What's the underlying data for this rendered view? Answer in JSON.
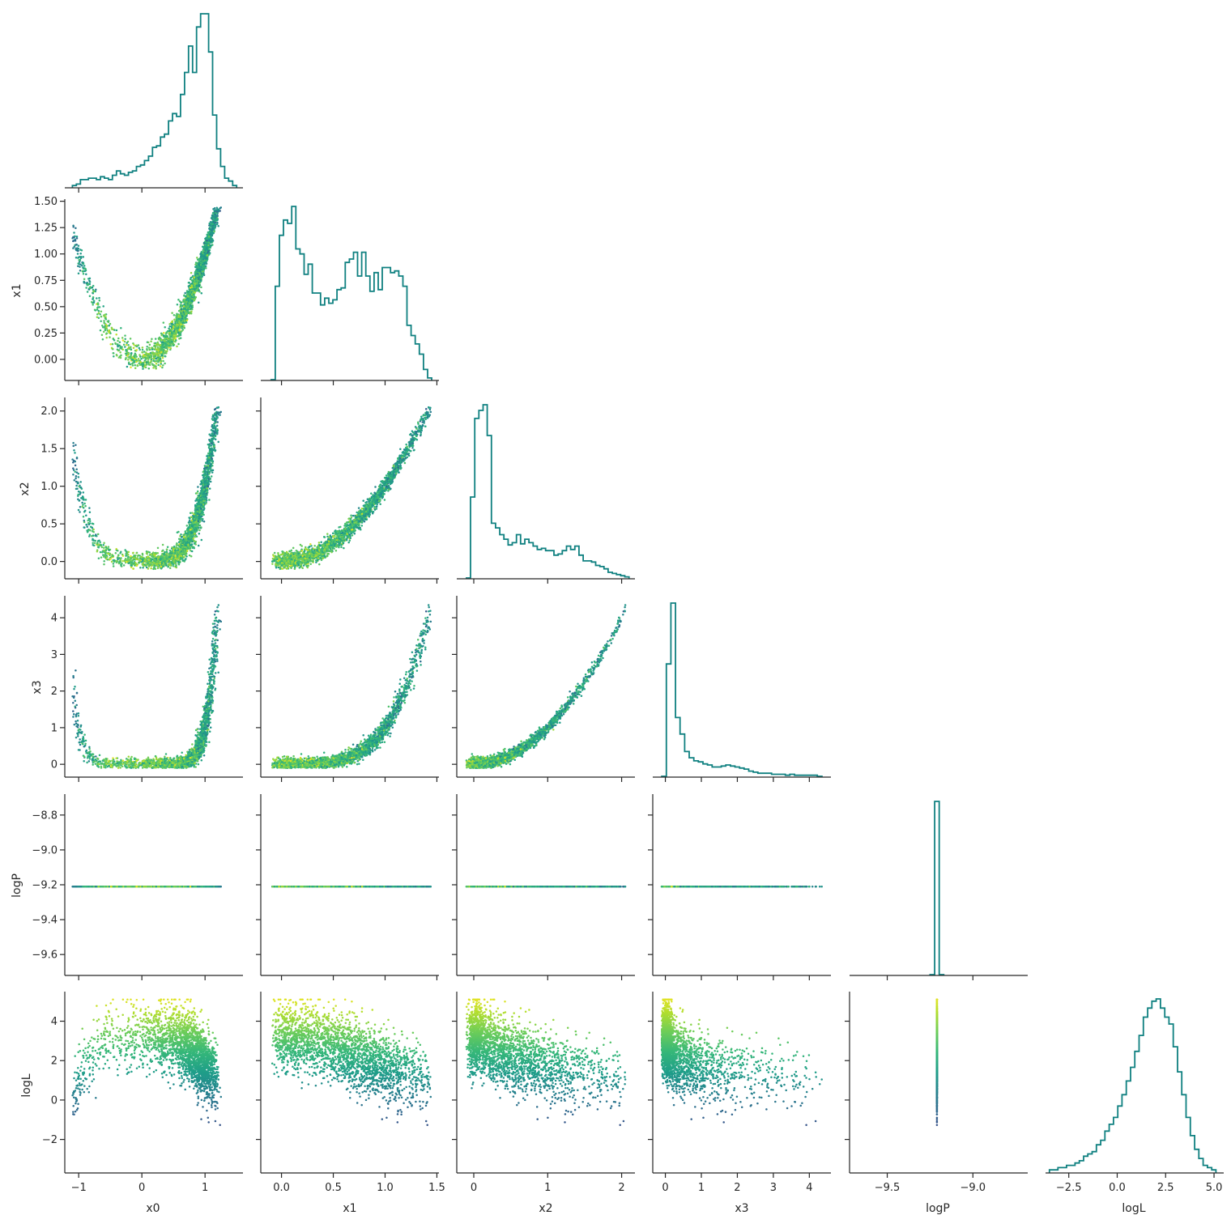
{
  "chart_data": {
    "type": "corner",
    "variables": [
      "x0",
      "x1",
      "x2",
      "x3",
      "logP",
      "logL"
    ],
    "hist_color": "#0f8080",
    "colormap": "viridis",
    "color_by": "logL",
    "axes": {
      "x0": {
        "range": [
          -1.22,
          1.6
        ],
        "ticks": [
          -1,
          0,
          1
        ],
        "tick_labels": [
          "−1",
          "0",
          "1"
        ]
      },
      "x1": {
        "range": [
          -0.2,
          1.52
        ],
        "ticks": [
          0.0,
          0.5,
          1.0,
          1.5
        ],
        "tick_labels": [
          "0.0",
          "0.5",
          "1.0",
          "1.5"
        ],
        "y_ticks": [
          0.0,
          0.25,
          0.5,
          0.75,
          1.0,
          1.25,
          1.5
        ],
        "y_tick_labels": [
          "0.00",
          "0.25",
          "0.50",
          "0.75",
          "1.00",
          "1.25",
          "1.50"
        ]
      },
      "x2": {
        "range": [
          -0.23,
          2.18
        ],
        "ticks": [
          0,
          1,
          2
        ],
        "tick_labels": [
          "0",
          "1",
          "2"
        ],
        "y_ticks": [
          0.0,
          0.5,
          1.0,
          1.5,
          2.0
        ],
        "y_tick_labels": [
          "0.0",
          "0.5",
          "1.0",
          "1.5",
          "2.0"
        ]
      },
      "x3": {
        "range": [
          -0.35,
          4.6
        ],
        "ticks": [
          0,
          1,
          2,
          3,
          4
        ],
        "tick_labels": [
          "0",
          "1",
          "2",
          "3",
          "4"
        ]
      },
      "logP": {
        "range": [
          -9.72,
          -8.68
        ],
        "ticks": [
          -9.5,
          -9.0
        ],
        "tick_labels": [
          "−9.5",
          "−9.0"
        ],
        "y_ticks": [
          -9.6,
          -9.4,
          -9.2,
          -9.0,
          -8.8
        ],
        "y_tick_labels": [
          "−9.6",
          "−9.4",
          "−9.2",
          "−9.0",
          "−8.8"
        ]
      },
      "logL": {
        "range": [
          -3.7,
          5.5
        ],
        "ticks": [
          -2.5,
          0.0,
          2.5,
          5.0
        ],
        "tick_labels": [
          "−2.5",
          "0.0",
          "2.5",
          "5.0"
        ],
        "y_ticks": [
          -2,
          0,
          2,
          4
        ],
        "y_tick_labels": [
          "−2",
          "0",
          "2",
          "4"
        ]
      }
    },
    "y_tick_override": {
      "x3": {
        "y_ticks": [
          0,
          1,
          2,
          3,
          4
        ],
        "y_tick_labels": [
          "0",
          "1",
          "2",
          "3",
          "4"
        ]
      }
    },
    "histograms": {
      "x0": {
        "range": [
          -1.1,
          1.5
        ],
        "counts": [
          1,
          2,
          5,
          5,
          6,
          6,
          5,
          7,
          6,
          5,
          8,
          11,
          9,
          8,
          10,
          11,
          14,
          15,
          18,
          21,
          27,
          28,
          34,
          36,
          45,
          50,
          48,
          63,
          78,
          96,
          78,
          109,
          118,
          118,
          92,
          49,
          26,
          14,
          6,
          4,
          1
        ]
      },
      "x1": {
        "range": [
          -0.1,
          1.45
        ],
        "counts": [
          0,
          55,
          85,
          94,
          92,
          102,
          77,
          74,
          62,
          68,
          51,
          51,
          44,
          48,
          45,
          47,
          53,
          54,
          69,
          71,
          75,
          61,
          75,
          61,
          52,
          63,
          53,
          66,
          66,
          63,
          64,
          61,
          55,
          32,
          26,
          21,
          15,
          6,
          1
        ]
      },
      "x2": {
        "range": [
          -0.1,
          2.1
        ],
        "counts": [
          0,
          71,
          140,
          147,
          152,
          125,
          48,
          44,
          38,
          34,
          29,
          31,
          38,
          30,
          34,
          31,
          28,
          25,
          26,
          24,
          24,
          20,
          21,
          24,
          28,
          25,
          28,
          20,
          15,
          15,
          14,
          11,
          10,
          8,
          5,
          4,
          3,
          2,
          1
        ]
      },
      "x3": {
        "range": [
          -0.1,
          4.35
        ],
        "counts": [
          0,
          109,
          168,
          57,
          41,
          24,
          18,
          15,
          14,
          12,
          11,
          9,
          9,
          10,
          11,
          10,
          9,
          8,
          7,
          5,
          4,
          3,
          3,
          3,
          2,
          2,
          2,
          1,
          2,
          1,
          1,
          1,
          1,
          1,
          0
        ]
      },
      "logP": {
        "range": [
          -9.25,
          -9.17
        ],
        "counts": [
          0,
          1,
          0
        ]
      },
      "logL": {
        "range": [
          -3.5,
          5.1
        ],
        "counts": [
          1,
          1,
          2,
          2,
          3,
          3,
          4,
          5,
          7,
          8,
          9,
          12,
          14,
          18,
          21,
          24,
          29,
          34,
          40,
          46,
          53,
          60,
          68,
          72,
          75,
          76,
          72,
          68,
          65,
          55,
          44,
          34,
          24,
          16,
          10,
          6,
          3,
          2,
          1
        ]
      }
    },
    "scatter": {
      "n_points": 2400,
      "logP_constant": -9.21
    }
  }
}
